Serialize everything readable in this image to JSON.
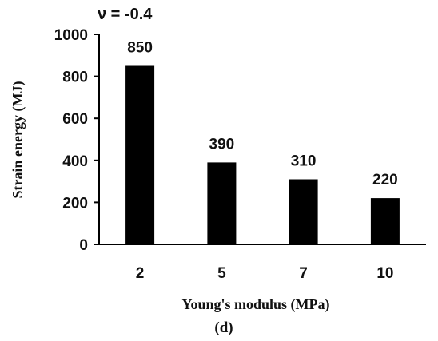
{
  "chart_data": {
    "type": "bar",
    "categories": [
      "2",
      "5",
      "7",
      "10"
    ],
    "values": [
      850,
      390,
      310,
      220
    ],
    "data_labels": [
      "850",
      "390",
      "310",
      "220"
    ],
    "title": "",
    "annotation": "ν = -0.4",
    "xlabel": "Young's modulus (MPa)",
    "ylabel": "Strain energy (MJ)",
    "ylim": [
      0,
      1000
    ],
    "yticks": [
      "0",
      "200",
      "400",
      "600",
      "800",
      "1000"
    ],
    "panel_label": "(d)",
    "grid": false,
    "legend": "none",
    "bar_color": "#000000"
  }
}
